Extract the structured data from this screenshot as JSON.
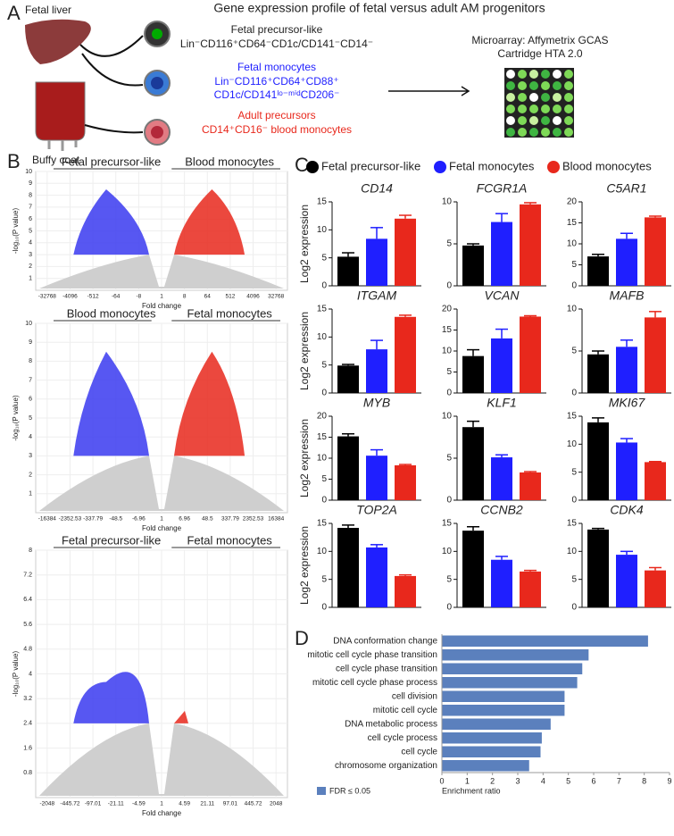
{
  "panel_labels": [
    "A",
    "B",
    "C",
    "D"
  ],
  "panel_a": {
    "title": "Gene expression profile of fetal versus adult AM progenitors",
    "sources": [
      "Fetal liver",
      "Buffy coat"
    ],
    "groups": [
      {
        "name": "Fetal precursor-like",
        "markers": [
          "Lin⁻CD116⁺CD64⁻CD1c/CD141⁻CD14⁻"
        ]
      },
      {
        "name": "Fetal monocytes",
        "markers": [
          "Lin⁻CD116⁺CD64⁺CD88⁺",
          "CD1c/CD141ˡᵒ⁻ᵐⁱᵈCD206⁻"
        ]
      },
      {
        "name": "Adult precursors",
        "markers": [
          "CD14⁺CD16⁻ blood monocytes"
        ]
      }
    ],
    "method": [
      "Microarray: Affymetrix GCAS",
      "Cartridge HTA 2.0"
    ]
  },
  "panel_c_legend": [
    {
      "name": "Fetal precursor-like",
      "color": "#000000"
    },
    {
      "name": "Fetal monocytes",
      "color": "#1f1fff"
    },
    {
      "name": "Blood monocytes",
      "color": "#e8281c"
    }
  ],
  "chart_data": [
    {
      "type": "volcano",
      "left_label": "Fetal precursor-like",
      "right_label": "Blood monocytes",
      "xlabel": "Fold change",
      "ylabel": "-log₁₀(P value)",
      "xticks": [
        -32768,
        -4096,
        -512,
        -64,
        -8,
        1,
        8,
        64,
        512,
        4096,
        32768
      ],
      "ylim": [
        0,
        10
      ],
      "yticks": [
        1,
        2,
        3,
        4,
        5,
        6,
        7,
        8,
        9,
        10
      ]
    },
    {
      "type": "volcano",
      "left_label": "Blood monocytes",
      "right_label": "Fetal monocytes",
      "xlabel": "Fold change",
      "ylabel": "-log₁₀(P value)",
      "xticks": [
        -16384,
        -2352.53,
        -337.79,
        -48.5,
        -6.96,
        1,
        6.96,
        48.5,
        337.79,
        2352.53,
        16384
      ],
      "ylim": [
        0,
        10
      ],
      "yticks": [
        1,
        2,
        3,
        4,
        5,
        6,
        7,
        8,
        9,
        10
      ]
    },
    {
      "type": "volcano",
      "left_label": "Fetal precursor-like",
      "right_label": "Fetal monocytes",
      "xlabel": "Fold change",
      "ylabel": "-log₁₀(P value)",
      "xticks": [
        -2048,
        -445.72,
        -97.01,
        -21.11,
        -4.59,
        1,
        4.59,
        21.11,
        97.01,
        445.72,
        2048
      ],
      "ylim": [
        0,
        8
      ],
      "yticks": [
        0.8,
        1.6,
        2.4,
        3.2,
        4,
        4.8,
        5.6,
        6.4,
        7.2,
        8
      ]
    },
    {
      "type": "bar",
      "title": "CD14",
      "ylabel": "Log2 expression",
      "values": [
        5.2,
        8.4,
        12
      ],
      "errors": [
        0.7,
        2.0,
        0.6
      ],
      "ylim": [
        0,
        15
      ],
      "yticks": [
        0,
        5,
        10,
        15
      ]
    },
    {
      "type": "bar",
      "title": "FCGR1A",
      "values": [
        4.8,
        7.6,
        9.7
      ],
      "errors": [
        0.2,
        1.0,
        0.2
      ],
      "ylim": [
        0,
        10
      ],
      "yticks": [
        0,
        5,
        10
      ]
    },
    {
      "type": "bar",
      "title": "C5AR1",
      "values": [
        7,
        11.2,
        16.3
      ],
      "errors": [
        0.5,
        1.3,
        0.3
      ],
      "ylim": [
        0,
        20
      ],
      "yticks": [
        0,
        5,
        10,
        15,
        20
      ]
    },
    {
      "type": "bar",
      "title": "ITGAM",
      "ylabel": "Log2 expression",
      "values": [
        4.9,
        7.8,
        13.6
      ],
      "errors": [
        0.2,
        1.6,
        0.3
      ],
      "ylim": [
        0,
        15
      ],
      "yticks": [
        0,
        5,
        10,
        15
      ]
    },
    {
      "type": "bar",
      "title": "VCAN",
      "values": [
        8.8,
        13,
        18.2
      ],
      "errors": [
        1.5,
        2.2,
        0.2
      ],
      "ylim": [
        0,
        20
      ],
      "yticks": [
        0,
        5,
        10,
        15,
        20
      ]
    },
    {
      "type": "bar",
      "title": "MAFB",
      "values": [
        4.6,
        5.5,
        9
      ],
      "errors": [
        0.4,
        0.8,
        0.7
      ],
      "ylim": [
        0,
        10
      ],
      "yticks": [
        0,
        5,
        10
      ]
    },
    {
      "type": "bar",
      "title": "MYB",
      "ylabel": "Log2 expression",
      "values": [
        15.2,
        10.6,
        8.3
      ],
      "errors": [
        0.6,
        1.4,
        0.2
      ],
      "ylim": [
        0,
        20
      ],
      "yticks": [
        0,
        5,
        10,
        15,
        20
      ]
    },
    {
      "type": "bar",
      "title": "KLF1",
      "values": [
        8.7,
        5.1,
        3.3
      ],
      "errors": [
        0.7,
        0.3,
        0.1
      ],
      "ylim": [
        0,
        10
      ],
      "yticks": [
        0,
        5,
        10
      ]
    },
    {
      "type": "bar",
      "title": "MKI67",
      "values": [
        13.9,
        10.3,
        6.8
      ],
      "errors": [
        0.8,
        0.7,
        0.1
      ],
      "ylim": [
        0,
        15
      ],
      "yticks": [
        0,
        5,
        10,
        15
      ]
    },
    {
      "type": "bar",
      "title": "TOP2A",
      "ylabel": "Log2 expression",
      "values": [
        14.2,
        10.7,
        5.6
      ],
      "errors": [
        0.5,
        0.5,
        0.2
      ],
      "ylim": [
        0,
        15
      ],
      "yticks": [
        0,
        5,
        10,
        15
      ]
    },
    {
      "type": "bar",
      "title": "CCNB2",
      "values": [
        13.7,
        8.5,
        6.4
      ],
      "errors": [
        0.7,
        0.6,
        0.2
      ],
      "ylim": [
        0,
        15
      ],
      "yticks": [
        0,
        5,
        10,
        15
      ]
    },
    {
      "type": "bar",
      "title": "CDK4",
      "values": [
        13.9,
        9.4,
        6.6
      ],
      "errors": [
        0.2,
        0.6,
        0.5
      ],
      "ylim": [
        0,
        15
      ],
      "yticks": [
        0,
        5,
        10,
        15
      ]
    },
    {
      "type": "hbar",
      "categories": [
        "DNA conformation change",
        "mitotic cell cycle phase transition",
        "cell cycle phase transition",
        "mitotic cell cycle phase process",
        "cell division",
        "mitotic cell cycle",
        "DNA metabolic process",
        "cell cycle process",
        "cell cycle",
        "chromosome organization"
      ],
      "values": [
        8.15,
        5.8,
        5.55,
        5.35,
        4.85,
        4.85,
        4.3,
        3.95,
        3.9,
        3.45
      ],
      "color": "#5b80bd",
      "legend": "FDR ≤ 0.05",
      "xlabel": "Enrichment ratio",
      "xlim": [
        0,
        9
      ],
      "xticks": [
        0,
        1,
        2,
        3,
        4,
        5,
        6,
        7,
        8,
        9
      ]
    }
  ]
}
